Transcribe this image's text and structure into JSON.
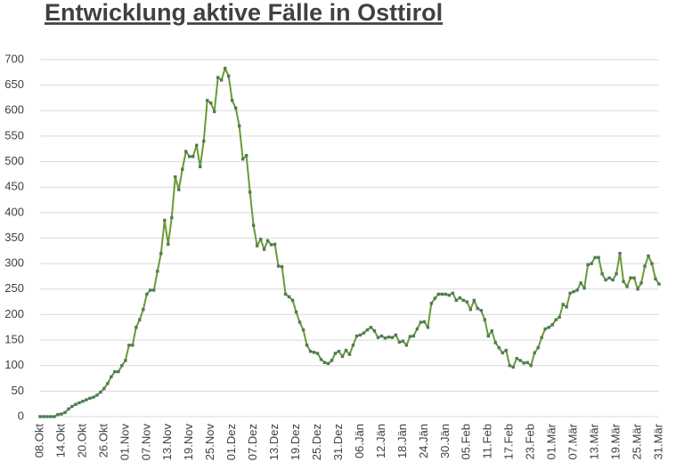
{
  "chart_data": {
    "type": "line",
    "title": "Entwicklung aktive Fälle in Osttirol",
    "categories": [
      "08.Okt",
      null,
      null,
      null,
      null,
      null,
      "14.Okt",
      null,
      null,
      null,
      null,
      null,
      "20.Okt",
      null,
      null,
      null,
      null,
      null,
      "26.Okt",
      null,
      null,
      null,
      null,
      null,
      "01.Nov",
      null,
      null,
      null,
      null,
      null,
      "07.Nov",
      null,
      null,
      null,
      null,
      null,
      "13.Nov",
      null,
      null,
      null,
      null,
      null,
      "19.Nov",
      null,
      null,
      null,
      null,
      null,
      "25.Nov",
      null,
      null,
      null,
      null,
      null,
      "01.Dez",
      null,
      null,
      null,
      null,
      null,
      "07.Dez",
      null,
      null,
      null,
      null,
      null,
      "13.Dez",
      null,
      null,
      null,
      null,
      null,
      "19.Dez",
      null,
      null,
      null,
      null,
      null,
      "25.Dez",
      null,
      null,
      null,
      null,
      null,
      "31.Dez",
      null,
      null,
      null,
      null,
      null,
      "06.Jän",
      null,
      null,
      null,
      null,
      null,
      "12.Jän",
      null,
      null,
      null,
      null,
      null,
      "18.Jän",
      null,
      null,
      null,
      null,
      null,
      "24.Jän",
      null,
      null,
      null,
      null,
      null,
      "30.Jän",
      null,
      null,
      null,
      null,
      null,
      "05.Feb",
      null,
      null,
      null,
      null,
      null,
      "11.Feb",
      null,
      null,
      null,
      null,
      null,
      "17.Feb",
      null,
      null,
      null,
      null,
      null,
      "23.Feb",
      null,
      null,
      null,
      null,
      null,
      "01.Mär",
      null,
      null,
      null,
      null,
      null,
      "07.Mär",
      null,
      null,
      null,
      null,
      null,
      "13.Mär",
      null,
      null,
      null,
      null,
      null,
      "19.Mär",
      null,
      null,
      null,
      null,
      null,
      "25.Mär",
      null,
      null,
      null,
      null,
      null,
      "31.Mär"
    ],
    "values": [
      0,
      0,
      0,
      0,
      0,
      4,
      5,
      8,
      15,
      20,
      24,
      27,
      30,
      33,
      36,
      38,
      42,
      48,
      55,
      65,
      78,
      88,
      88,
      100,
      110,
      140,
      140,
      175,
      190,
      210,
      240,
      248,
      248,
      285,
      320,
      385,
      338,
      390,
      470,
      445,
      485,
      520,
      510,
      510,
      532,
      490,
      540,
      620,
      615,
      598,
      665,
      660,
      683,
      668,
      620,
      605,
      570,
      505,
      512,
      440,
      375,
      335,
      348,
      328,
      345,
      337,
      338,
      295,
      294,
      240,
      235,
      228,
      205,
      185,
      170,
      140,
      128,
      126,
      124,
      112,
      106,
      104,
      110,
      124,
      128,
      118,
      130,
      122,
      140,
      158,
      160,
      164,
      170,
      175,
      168,
      155,
      158,
      154,
      156,
      155,
      160,
      146,
      148,
      140,
      157,
      158,
      172,
      185,
      186,
      175,
      222,
      232,
      240,
      240,
      240,
      238,
      242,
      228,
      233,
      228,
      225,
      210,
      228,
      212,
      208,
      190,
      158,
      168,
      145,
      135,
      125,
      130,
      100,
      97,
      114,
      110,
      105,
      106,
      100,
      125,
      135,
      155,
      172,
      175,
      180,
      190,
      195,
      220,
      215,
      242,
      245,
      248,
      262,
      252,
      298,
      300,
      312,
      312,
      280,
      268,
      272,
      268,
      280,
      320,
      265,
      255,
      272,
      272,
      250,
      262,
      295,
      315,
      300,
      270,
      260
    ],
    "color": "#6b9a35",
    "marker_color": "#4f7a58",
    "ylim": [
      0,
      700
    ],
    "yticks": [
      0,
      50,
      100,
      150,
      200,
      250,
      300,
      350,
      400,
      450,
      500,
      550,
      600,
      650,
      700
    ],
    "grid": true
  }
}
